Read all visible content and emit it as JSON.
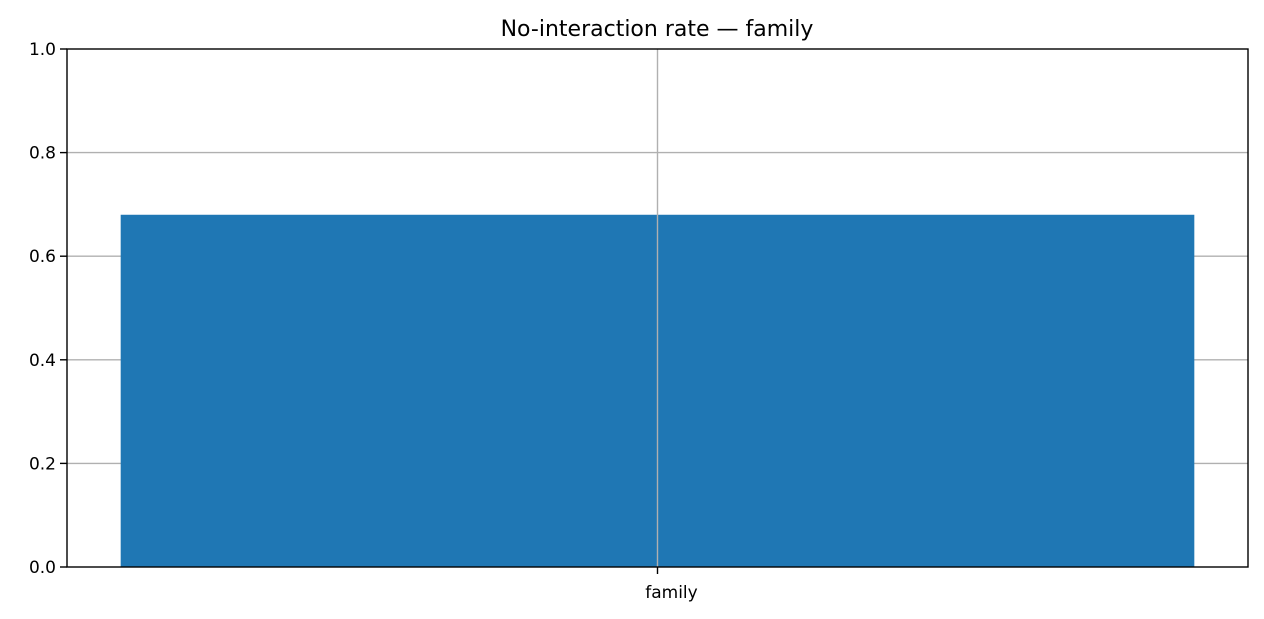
{
  "chart_data": {
    "type": "bar",
    "title": "No-interaction rate — family",
    "xlabel": "",
    "ylabel": "",
    "categories": [
      "family"
    ],
    "values": [
      0.68
    ],
    "ylim": [
      0,
      1
    ],
    "yticks": [
      "0.0",
      "0.2",
      "0.4",
      "0.6",
      "0.8",
      "1.0"
    ],
    "grid": true,
    "bar_color": "#1f77b4"
  }
}
